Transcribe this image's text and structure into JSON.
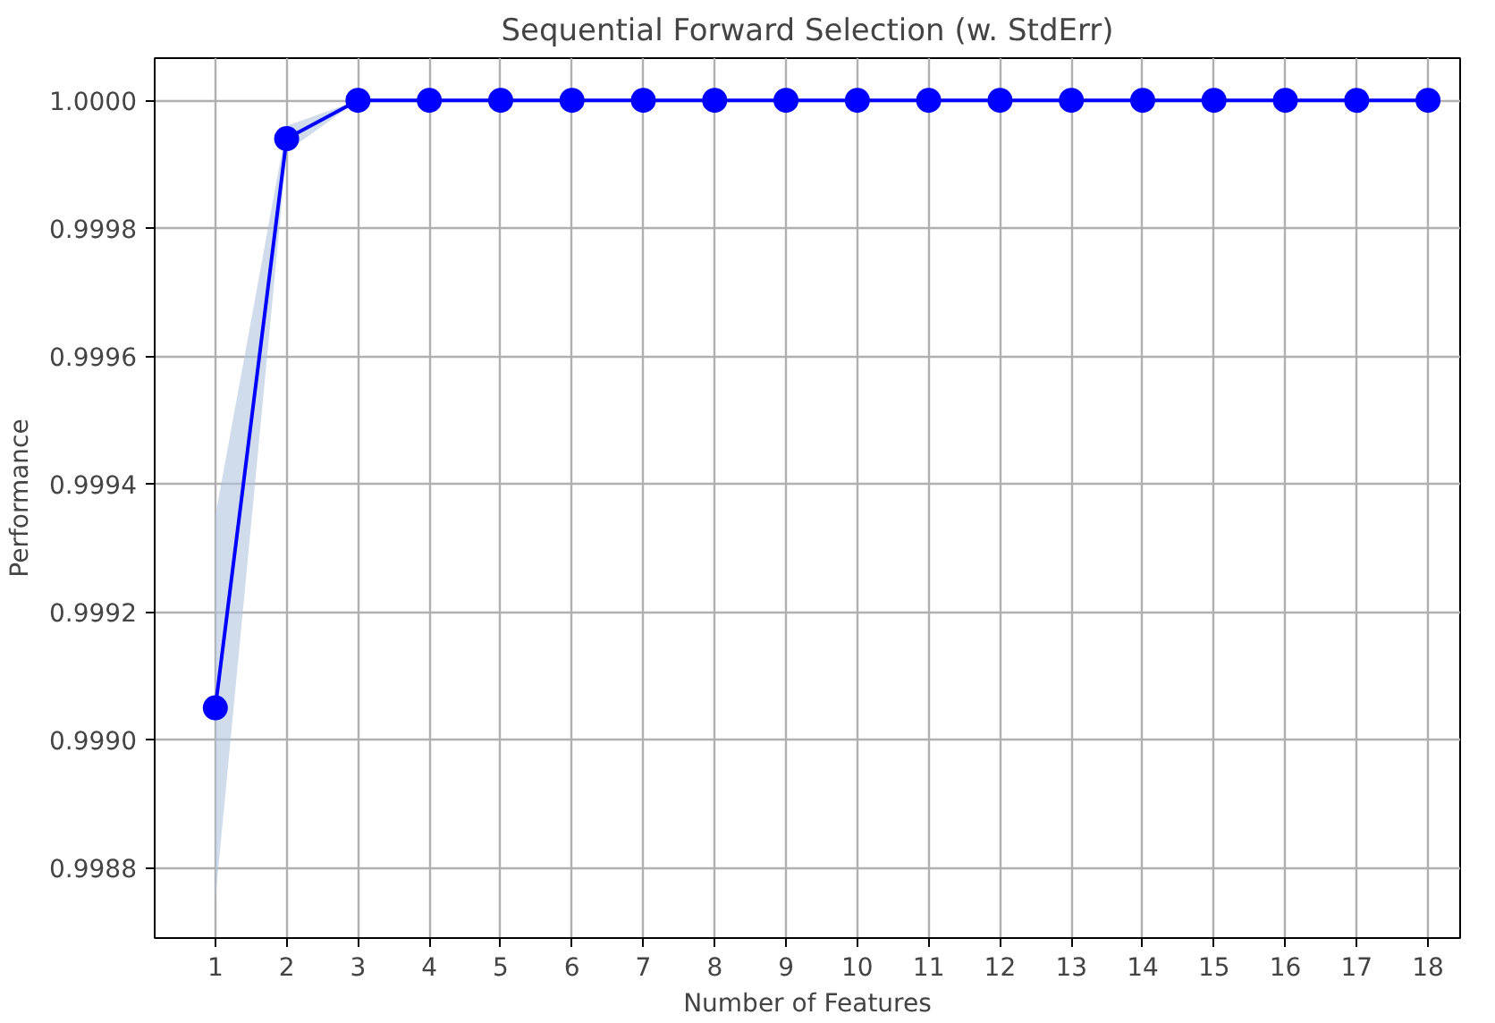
{
  "chart_data": {
    "type": "line",
    "title": "Sequential Forward Selection (w. StdErr)",
    "xlabel": "Number of Features",
    "ylabel": "Performance",
    "x": [
      1,
      2,
      3,
      4,
      5,
      6,
      7,
      8,
      9,
      10,
      11,
      12,
      13,
      14,
      15,
      16,
      17,
      18
    ],
    "series": [
      {
        "color": "#0000ff",
        "values": [
          0.99905,
          0.99994,
          1.0,
          1.0,
          1.0,
          1.0,
          1.0,
          1.0,
          1.0,
          1.0,
          1.0,
          1.0,
          1.0,
          1.0,
          1.0,
          1.0,
          1.0,
          1.0
        ],
        "lower": [
          0.99875,
          0.99992,
          1.0,
          1.0,
          1.0,
          1.0,
          1.0,
          1.0,
          1.0,
          1.0,
          1.0,
          1.0,
          1.0,
          1.0,
          1.0,
          1.0,
          1.0,
          1.0
        ],
        "upper": [
          0.99935,
          0.99996,
          1.0,
          1.0,
          1.0,
          1.0,
          1.0,
          1.0,
          1.0,
          1.0,
          1.0,
          1.0,
          1.0,
          1.0,
          1.0,
          1.0,
          1.0,
          1.0
        ]
      }
    ],
    "xlim": [
      0.15,
      18.45
    ],
    "xticks": [
      1,
      2,
      3,
      4,
      5,
      6,
      7,
      8,
      9,
      10,
      11,
      12,
      13,
      14,
      15,
      16,
      17,
      18
    ],
    "ylim": [
      0.99869,
      1.000066
    ],
    "yticks": [
      {
        "value": 0.9988,
        "label": "0.9988"
      },
      {
        "value": 0.999,
        "label": "0.9990"
      },
      {
        "value": 0.9992,
        "label": "0.9992"
      },
      {
        "value": 0.9994,
        "label": "0.9994"
      },
      {
        "value": 0.9996,
        "label": "0.9996"
      },
      {
        "value": 0.9998,
        "label": "0.9998"
      },
      {
        "value": 1.0,
        "label": "1.0000"
      }
    ],
    "grid": true,
    "marker": "circle",
    "line_style": "solid"
  }
}
